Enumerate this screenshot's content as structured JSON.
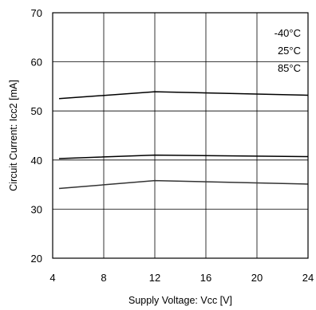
{
  "chart_data": {
    "type": "line",
    "xlabel": "Supply Voltage: Vcc [V]",
    "ylabel": "Circuit Current: Icc2 [mA]",
    "xlim": [
      4,
      24
    ],
    "ylim": [
      20,
      70
    ],
    "xticks": [
      4,
      8,
      12,
      16,
      20,
      24
    ],
    "yticks": [
      20,
      30,
      40,
      50,
      60,
      70
    ],
    "grid": true,
    "legend_position": "top-right",
    "x": [
      4.5,
      12,
      24
    ],
    "series": [
      {
        "name": "-40°C",
        "values": [
          52.5,
          53.9,
          53.2
        ],
        "color": "#000000"
      },
      {
        "name": "25°C",
        "values": [
          40.3,
          41.0,
          40.7
        ],
        "color": "#000000"
      },
      {
        "name": "85°C",
        "values": [
          34.2,
          35.8,
          35.1
        ],
        "color": "#333333"
      }
    ]
  }
}
